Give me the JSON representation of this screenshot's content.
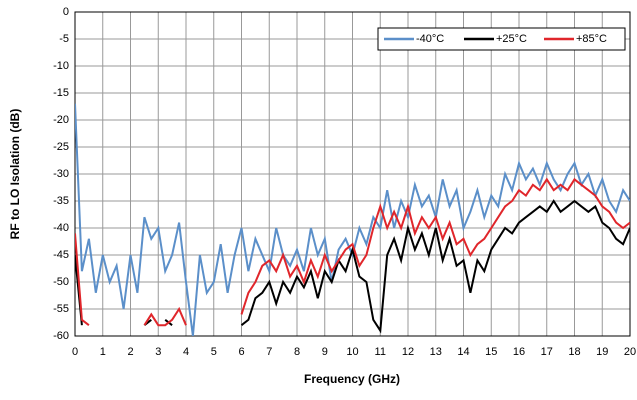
{
  "chart_data": {
    "type": "line",
    "x_label": "Frequency (GHz)",
    "y_label": "RF to LO Isolation (dB)",
    "x": [
      0,
      0.25,
      0.5,
      0.75,
      1,
      1.25,
      1.5,
      1.75,
      2,
      2.25,
      2.5,
      2.75,
      3,
      3.25,
      3.5,
      3.75,
      4,
      4.25,
      4.5,
      4.75,
      5,
      5.25,
      5.5,
      5.75,
      6,
      6.25,
      6.5,
      6.75,
      7,
      7.25,
      7.5,
      7.75,
      8,
      8.25,
      8.5,
      8.75,
      9,
      9.25,
      9.5,
      9.75,
      10,
      10.25,
      10.5,
      10.75,
      11,
      11.25,
      11.5,
      11.75,
      12,
      12.25,
      12.5,
      12.75,
      13,
      13.25,
      13.5,
      13.75,
      14,
      14.25,
      14.5,
      14.75,
      15,
      15.25,
      15.5,
      15.75,
      16,
      16.25,
      16.5,
      16.75,
      17,
      17.25,
      17.5,
      17.75,
      18,
      18.25,
      18.5,
      18.75,
      19,
      19.25,
      19.5,
      19.75,
      20
    ],
    "series": [
      {
        "name": "-40°C",
        "color": "#5b8fc9",
        "values": [
          -17,
          -48,
          -42,
          -52,
          -45,
          -50,
          -47,
          -55,
          -45,
          -52,
          -38,
          -42,
          -40,
          -48,
          -45,
          -39,
          -50,
          -60,
          -45,
          -52,
          -50,
          -43,
          -52,
          -45,
          -40,
          -48,
          -42,
          -45,
          -48,
          -40,
          -45,
          -47,
          -44,
          -48,
          -40,
          -45,
          -42,
          -50,
          -44,
          -42,
          -45,
          -40,
          -43,
          -38,
          -40,
          -33,
          -40,
          -35,
          -38,
          -32,
          -36,
          -34,
          -38,
          -31,
          -36,
          -33,
          -40,
          -37,
          -33,
          -38,
          -34,
          -36,
          -30,
          -33,
          -28,
          -31,
          -29,
          -32,
          -28,
          -31,
          -33,
          -30,
          -28,
          -32,
          -30,
          -34,
          -31,
          -35,
          -37,
          -33,
          -35
        ]
      },
      {
        "name": "+25°C",
        "color": "#000000",
        "values": [
          -45,
          -58,
          null,
          null,
          null,
          null,
          null,
          null,
          null,
          null,
          -58,
          -57,
          null,
          -57,
          -58,
          null,
          null,
          null,
          null,
          null,
          null,
          null,
          null,
          null,
          -58,
          -57,
          -53,
          -52,
          -50,
          -54,
          -50,
          -52,
          -49,
          -51,
          -48,
          -53,
          -48,
          -50,
          -46,
          -48,
          -44,
          -49,
          -50,
          -57,
          -59,
          -45,
          -42,
          -46,
          -40,
          -44,
          -41,
          -45,
          -40,
          -46,
          -42,
          -47,
          -46,
          -52,
          -46,
          -48,
          -44,
          -42,
          -40,
          -41,
          -39,
          -38,
          -37,
          -36,
          -37,
          -35,
          -37,
          -36,
          -35,
          -36,
          -37,
          -36,
          -39,
          -40,
          -42,
          -43,
          -40
        ]
      },
      {
        "name": "+85°C",
        "color": "#e0262b",
        "values": [
          -41,
          -57,
          -58,
          null,
          null,
          null,
          null,
          null,
          null,
          null,
          -58,
          -56,
          -58,
          -58,
          -57,
          -55,
          -58,
          null,
          null,
          null,
          null,
          null,
          null,
          null,
          -56,
          -52,
          -50,
          -47,
          -46,
          -48,
          -45,
          -49,
          -47,
          -50,
          -46,
          -49,
          -45,
          -48,
          -46,
          -44,
          -43,
          -47,
          -45,
          -40,
          -36,
          -40,
          -37,
          -40,
          -36,
          -41,
          -38,
          -40,
          -38,
          -42,
          -39,
          -43,
          -42,
          -45,
          -43,
          -42,
          -40,
          -38,
          -36,
          -35,
          -33,
          -34,
          -32,
          -33,
          -31,
          -33,
          -32,
          -33,
          -31,
          -32,
          -33,
          -34,
          -36,
          -37,
          -39,
          -40,
          -39
        ]
      }
    ],
    "xlim": [
      0,
      20
    ],
    "xticks": [
      0,
      1,
      2,
      3,
      4,
      5,
      6,
      7,
      8,
      9,
      10,
      11,
      12,
      13,
      14,
      15,
      16,
      17,
      18,
      19,
      20
    ],
    "ylim": [
      -60,
      0
    ],
    "yticks": [
      0,
      -5,
      -10,
      -15,
      -20,
      -25,
      -30,
      -35,
      -40,
      -45,
      -50,
      -55,
      -60
    ],
    "grid": true,
    "legend": "top-right"
  }
}
